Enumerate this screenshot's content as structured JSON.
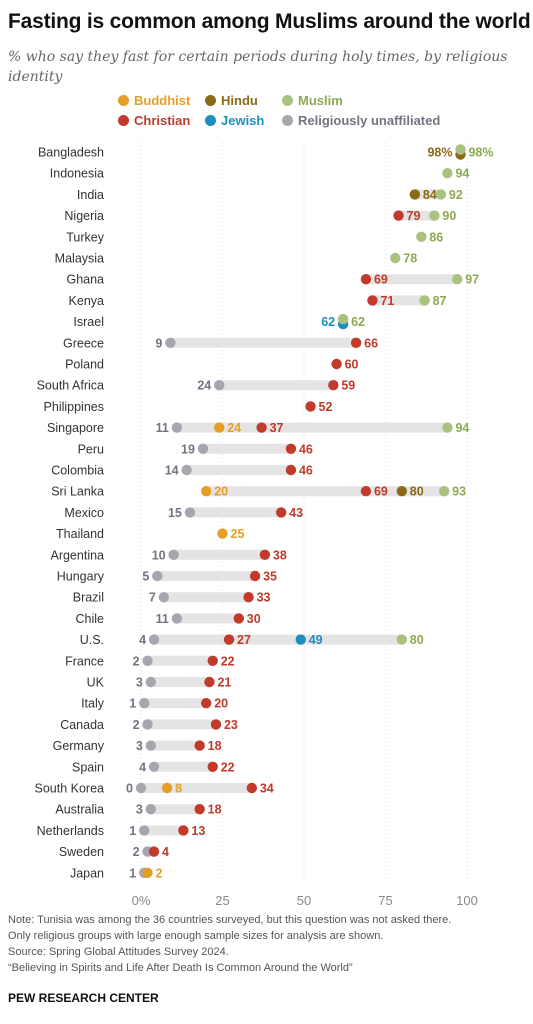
{
  "title": "Fasting is common among Muslims around the world",
  "subtitle": "% who say they fast for certain periods during holy times, by religious identity",
  "footer": {
    "note1": "Note: Tunisia was among the 36 countries surveyed, but this question was not asked there.",
    "note2": "Only religious groups with large enough sample sizes for analysis are shown.",
    "source": "Source: Spring Global Attitudes Survey 2024.",
    "report": "“Believing in Spirits and Life After Death Is Common Around the World”",
    "brand": "PEW RESEARCH CENTER"
  },
  "chart_data": {
    "type": "dot",
    "xlim": [
      0,
      100
    ],
    "xticks": [
      "0%",
      "25",
      "50",
      "75",
      "100"
    ],
    "legend": [
      {
        "key": "buddhist",
        "name": "Buddhist",
        "color": "#E69F26"
      },
      {
        "key": "hindu",
        "name": "Hindu",
        "color": "#8A6A17"
      },
      {
        "key": "muslim",
        "name": "Muslim",
        "color": "#A9C27E"
      },
      {
        "key": "christian",
        "name": "Christian",
        "color": "#C13A2B"
      },
      {
        "key": "jewish",
        "name": "Jewish",
        "color": "#1D8EBE"
      },
      {
        "key": "unaffiliated",
        "name": "Religiously unaffiliated",
        "color": "#A7A5AE"
      }
    ],
    "label_colors": {
      "buddhist": "#E69F26",
      "hindu": "#8A6A17",
      "muslim": "#8DA94F",
      "christian": "#C13A2B",
      "jewish": "#1D8EBE",
      "unaffiliated": "#767380"
    },
    "countries": [
      {
        "name": "Bangladesh",
        "values": {
          "hindu": 98,
          "muslim": 98
        },
        "labels": {
          "hindu": "98%",
          "muslim": "98%"
        }
      },
      {
        "name": "Indonesia",
        "values": {
          "muslim": 94
        }
      },
      {
        "name": "India",
        "values": {
          "hindu": 84,
          "muslim": 92
        }
      },
      {
        "name": "Nigeria",
        "values": {
          "christian": 79,
          "muslim": 90
        }
      },
      {
        "name": "Turkey",
        "values": {
          "muslim": 86
        }
      },
      {
        "name": "Malaysia",
        "values": {
          "muslim": 78
        }
      },
      {
        "name": "Ghana",
        "values": {
          "christian": 69,
          "muslim": 97
        }
      },
      {
        "name": "Kenya",
        "values": {
          "christian": 71,
          "muslim": 87
        }
      },
      {
        "name": "Israel",
        "values": {
          "jewish": 62,
          "muslim": 62
        }
      },
      {
        "name": "Greece",
        "values": {
          "unaffiliated": 9,
          "christian": 66
        }
      },
      {
        "name": "Poland",
        "values": {
          "christian": 60
        }
      },
      {
        "name": "South Africa",
        "values": {
          "unaffiliated": 24,
          "christian": 59
        }
      },
      {
        "name": "Philippines",
        "values": {
          "christian": 52
        }
      },
      {
        "name": "Singapore",
        "values": {
          "unaffiliated": 11,
          "buddhist": 24,
          "christian": 37,
          "muslim": 94
        }
      },
      {
        "name": "Peru",
        "values": {
          "unaffiliated": 19,
          "christian": 46
        }
      },
      {
        "name": "Colombia",
        "values": {
          "unaffiliated": 14,
          "christian": 46
        }
      },
      {
        "name": "Sri Lanka",
        "values": {
          "buddhist": 20,
          "christian": 69,
          "hindu": 80,
          "muslim": 93
        }
      },
      {
        "name": "Mexico",
        "values": {
          "unaffiliated": 15,
          "christian": 43
        }
      },
      {
        "name": "Thailand",
        "values": {
          "buddhist": 25
        }
      },
      {
        "name": "Argentina",
        "values": {
          "unaffiliated": 10,
          "christian": 38
        }
      },
      {
        "name": "Hungary",
        "values": {
          "unaffiliated": 5,
          "christian": 35
        }
      },
      {
        "name": "Brazil",
        "values": {
          "unaffiliated": 7,
          "christian": 33
        }
      },
      {
        "name": "Chile",
        "values": {
          "unaffiliated": 11,
          "christian": 30
        }
      },
      {
        "name": "U.S.",
        "values": {
          "unaffiliated": 4,
          "christian": 27,
          "jewish": 49,
          "muslim": 80
        }
      },
      {
        "name": "France",
        "values": {
          "unaffiliated": 2,
          "christian": 22
        }
      },
      {
        "name": "UK",
        "values": {
          "unaffiliated": 3,
          "christian": 21
        }
      },
      {
        "name": "Italy",
        "values": {
          "unaffiliated": 1,
          "christian": 20
        }
      },
      {
        "name": "Canada",
        "values": {
          "unaffiliated": 2,
          "christian": 23
        }
      },
      {
        "name": "Germany",
        "values": {
          "unaffiliated": 3,
          "christian": 18
        }
      },
      {
        "name": "Spain",
        "values": {
          "unaffiliated": 4,
          "christian": 22
        }
      },
      {
        "name": "South Korea",
        "values": {
          "unaffiliated": 0,
          "buddhist": 8,
          "christian": 34
        }
      },
      {
        "name": "Australia",
        "values": {
          "unaffiliated": 3,
          "christian": 18
        }
      },
      {
        "name": "Netherlands",
        "values": {
          "unaffiliated": 1,
          "christian": 13
        }
      },
      {
        "name": "Sweden",
        "values": {
          "unaffiliated": 2,
          "christian": 4
        }
      },
      {
        "name": "Japan",
        "values": {
          "unaffiliated": 1,
          "buddhist": 2
        }
      }
    ]
  }
}
